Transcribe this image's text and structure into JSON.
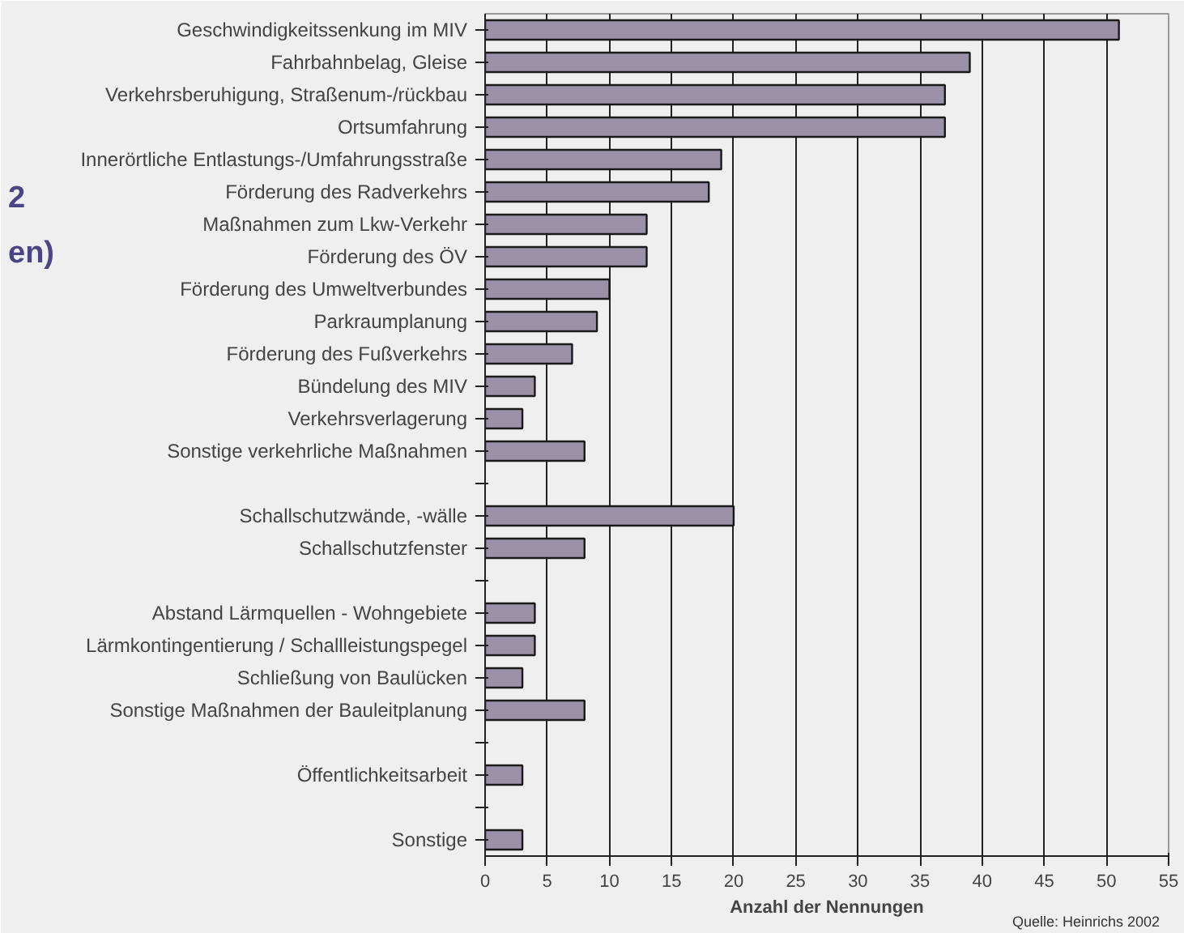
{
  "chart_data": {
    "type": "bar",
    "orientation": "horizontal",
    "xlabel": "Anzahl der Nennungen",
    "categories": [
      "Geschwindigkeitssenkung im MIV",
      "Fahrbahnbelag, Gleise",
      "Verkehrsberuhigung, Straßenum-/rückbau",
      "Ortsumfahrung",
      "Innerörtliche Entlastungs-/Umfahrungsstraße",
      "Förderung des Radverkehrs",
      "Maßnahmen zum Lkw-Verkehr",
      "Förderung des ÖV",
      "Förderung des Umweltverbundes",
      "Parkraumplanung",
      "Förderung des Fußverkehrs",
      "Bündelung des MIV",
      "Verkehrsverlagerung",
      "Sonstige verkehrliche Maßnahmen",
      null,
      "Schallschutzwände, -wälle",
      "Schallschutzfenster",
      null,
      "Abstand Lärmquellen - Wohngebiete",
      "Lärmkontingentierung / Schallleistungspegel",
      "Schließung von Baulücken",
      "Sonstige Maßnahmen der Bauleitplanung",
      null,
      "Öffentlichkeitsarbeit",
      null,
      "Sonstige"
    ],
    "values": [
      51,
      39,
      37,
      37,
      19,
      18,
      13,
      13,
      10,
      9,
      7,
      4,
      3,
      8,
      null,
      20,
      8,
      null,
      4,
      4,
      3,
      8,
      null,
      3,
      null,
      3
    ],
    "color": "#9a90a8",
    "xlim": [
      0,
      55
    ],
    "xticks": [
      0,
      5,
      10,
      15,
      20,
      25,
      30,
      35,
      40,
      45,
      50,
      55
    ],
    "grid": "x",
    "annotations": [
      "2",
      "en)",
      "Quelle: Heinrichs 2002"
    ]
  }
}
